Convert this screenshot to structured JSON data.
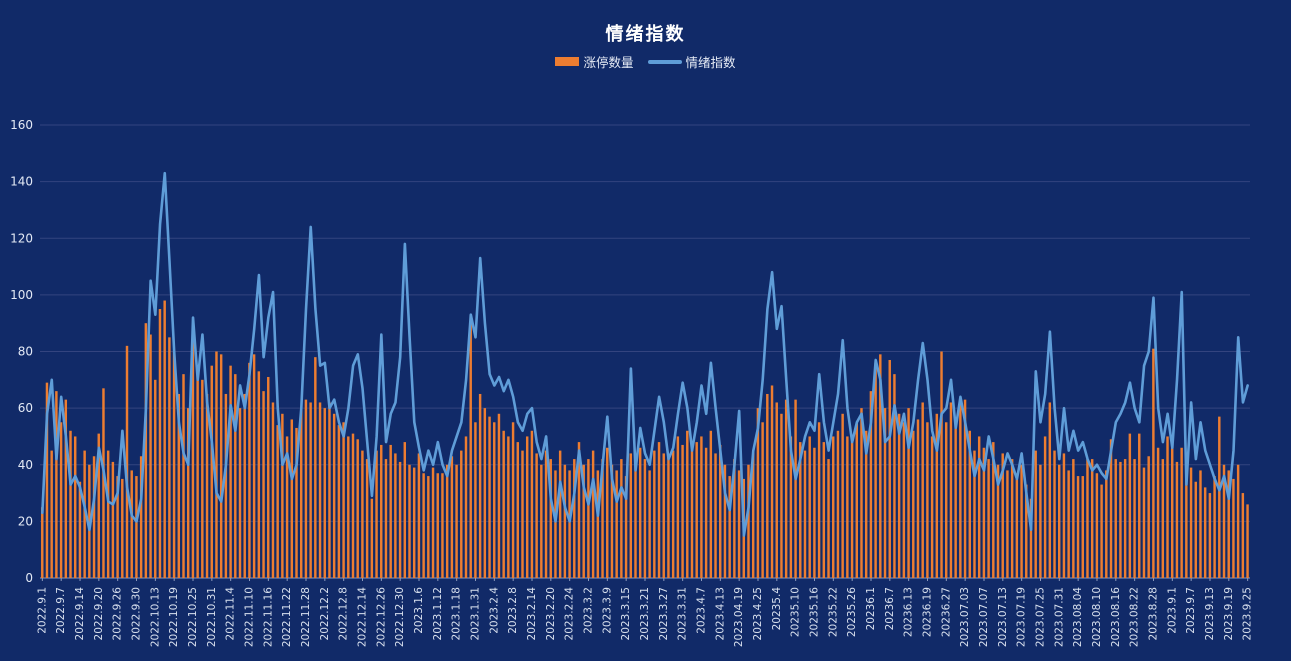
{
  "page": {
    "background": "#112a68"
  },
  "header": {
    "title": "情绪指数"
  },
  "legend": {
    "items": [
      {
        "label": "涨停数量",
        "type": "bar",
        "color": "#ed7d31"
      },
      {
        "label": "情绪指数",
        "type": "line",
        "color": "#5f9dd8"
      }
    ]
  },
  "colors": {
    "background": "#112a68",
    "grid": "#33447f",
    "axis": "#8d99bb",
    "tick_text": "#e3e9f5",
    "x_text": "#d8e0ee",
    "bar": "#ed7d31",
    "line": "#5f9dd8"
  },
  "chart_data": {
    "type": "bar+line",
    "title": "情绪指数",
    "xlabel": "",
    "ylabel": "",
    "ylim": [
      0,
      160
    ],
    "y_ticks": [
      0,
      20,
      40,
      60,
      80,
      100,
      120,
      140,
      160
    ],
    "grid": true,
    "legend_position": "top",
    "x_label_every": 4,
    "x_labels": [
      "2022.9.1",
      "2022.9.7",
      "2022.9.14",
      "2022.9.20",
      "2022.9.26",
      "2022.9.30",
      "2022.10.13",
      "2022.10.19",
      "2022.10.25",
      "2022.10.31",
      "2022.11.4",
      "2022.11.10",
      "2022.11.16",
      "2022.11.22",
      "2022.11.28",
      "2022.12.2",
      "2022.12.8",
      "2022.12.14",
      "2022.12.26",
      "2022.12.30",
      "2023.1.6",
      "2023.1.12",
      "2023.1.18",
      "2023.1.31",
      "2023.2.4",
      "2023.2.8",
      "2023.2.14",
      "2023.2.20",
      "2023.2.24",
      "2023.3.2",
      "2023.3.9",
      "2023.3.15",
      "2023.3.21",
      "2023.3.27",
      "2023.3.31",
      "2023.4.7",
      "2023.4.13",
      "2023.04.19",
      "2023.4.25",
      "20235.4",
      "20235.10",
      "20235.16",
      "20235.22",
      "20235.26",
      "20236.1",
      "20236.7",
      "20236.13",
      "20236.19",
      "20236.27",
      "2023.07.03",
      "2023.07.07",
      "2023.07.13",
      "2023.07.19",
      "2023.07.25",
      "2023.07.31",
      "2023.08.04",
      "2023.08.10",
      "2023.08.16",
      "2023.08.22",
      "2023.8.28",
      "2023.9.1",
      "2023.9.7",
      "2023.9.13",
      "2023.9.19",
      "2023.9.25"
    ],
    "series": [
      {
        "name": "涨停数量",
        "type": "bar",
        "color": "#ed7d31",
        "values": [
          25,
          69,
          45,
          66,
          55,
          63,
          52,
          50,
          34,
          45,
          40,
          43,
          51,
          67,
          45,
          41,
          36,
          35,
          82,
          38,
          36,
          43,
          90,
          86,
          70,
          95,
          98,
          85,
          80,
          65,
          72,
          60,
          85,
          75,
          70,
          65,
          75,
          80,
          79,
          65,
          75,
          72,
          60,
          65,
          76,
          79,
          73,
          66,
          71,
          62,
          54,
          58,
          50,
          56,
          53,
          60,
          63,
          62,
          78,
          62,
          60,
          62,
          58,
          54,
          55,
          50,
          51,
          49,
          45,
          42,
          28,
          45,
          47,
          42,
          47,
          44,
          41,
          48,
          40,
          39,
          44,
          37,
          36,
          39,
          37,
          37,
          40,
          43,
          40,
          45,
          50,
          93,
          55,
          65,
          60,
          57,
          55,
          58,
          52,
          50,
          55,
          48,
          45,
          50,
          52,
          44,
          40,
          45,
          42,
          38,
          45,
          40,
          38,
          42,
          48,
          40,
          42,
          45,
          38,
          42,
          46,
          40,
          38,
          42,
          36,
          44,
          40,
          46,
          42,
          38,
          45,
          48,
          44,
          43,
          45,
          50,
          47,
          52,
          45,
          48,
          50,
          46,
          52,
          44,
          47,
          40,
          36,
          42,
          38,
          35,
          40,
          45,
          60,
          55,
          65,
          68,
          62,
          58,
          63,
          50,
          63,
          48,
          45,
          50,
          46,
          55,
          48,
          42,
          50,
          52,
          58,
          50,
          48,
          55,
          60,
          52,
          66,
          76,
          79,
          60,
          77,
          72,
          58,
          55,
          60,
          52,
          56,
          62,
          55,
          50,
          58,
          80,
          55,
          62,
          55,
          63,
          63,
          52,
          45,
          50,
          46,
          42,
          48,
          40,
          44,
          38,
          42,
          35,
          40,
          33,
          28,
          45,
          40,
          50,
          62,
          45,
          40,
          44,
          38,
          42,
          36,
          36,
          42,
          42,
          37,
          33,
          38,
          49,
          42,
          41,
          42,
          51,
          42,
          51,
          39,
          43,
          81,
          46,
          42,
          50,
          46,
          41,
          46,
          36,
          39,
          34,
          38,
          32,
          30,
          36,
          57,
          40,
          38,
          35,
          40,
          30,
          26
        ]
      },
      {
        "name": "情绪指数",
        "type": "line",
        "color": "#5f9dd8",
        "values": [
          23,
          58,
          70,
          42,
          64,
          50,
          33,
          36,
          32,
          25,
          17,
          28,
          46,
          38,
          27,
          26,
          30,
          52,
          32,
          22,
          20,
          28,
          60,
          105,
          93,
          125,
          143,
          112,
          80,
          55,
          44,
          40,
          92,
          70,
          86,
          62,
          48,
          30,
          27,
          40,
          61,
          52,
          68,
          60,
          72,
          88,
          107,
          78,
          92,
          101,
          60,
          40,
          44,
          35,
          40,
          60,
          95,
          124,
          95,
          75,
          76,
          60,
          63,
          55,
          50,
          60,
          75,
          79,
          67,
          48,
          29,
          50,
          86,
          48,
          58,
          62,
          78,
          118,
          85,
          55,
          46,
          38,
          45,
          40,
          48,
          40,
          36,
          45,
          50,
          55,
          70,
          93,
          85,
          113,
          90,
          72,
          68,
          71,
          66,
          70,
          64,
          55,
          52,
          58,
          60,
          48,
          42,
          50,
          28,
          20,
          34,
          25,
          20,
          30,
          45,
          32,
          26,
          35,
          22,
          40,
          57,
          35,
          27,
          32,
          28,
          74,
          38,
          53,
          44,
          40,
          52,
          64,
          55,
          42,
          46,
          58,
          69,
          60,
          45,
          55,
          68,
          58,
          76,
          60,
          45,
          30,
          24,
          40,
          59,
          15,
          25,
          45,
          53,
          70,
          95,
          108,
          88,
          96,
          70,
          45,
          35,
          42,
          50,
          55,
          52,
          72,
          55,
          45,
          55,
          65,
          84,
          60,
          48,
          55,
          58,
          44,
          55,
          77,
          70,
          48,
          50,
          61,
          51,
          58,
          46,
          55,
          70,
          83,
          70,
          52,
          45,
          58,
          60,
          70,
          53,
          64,
          55,
          45,
          36,
          42,
          38,
          50,
          42,
          33,
          38,
          44,
          40,
          35,
          44,
          30,
          17,
          73,
          55,
          65,
          87,
          60,
          42,
          60,
          45,
          52,
          45,
          48,
          42,
          38,
          40,
          37,
          35,
          45,
          55,
          58,
          62,
          69,
          60,
          55,
          75,
          80,
          99,
          60,
          48,
          58,
          46,
          70,
          101,
          33,
          62,
          42,
          55,
          45,
          40,
          35,
          31,
          36,
          28,
          45,
          85,
          62,
          68
        ]
      }
    ]
  }
}
